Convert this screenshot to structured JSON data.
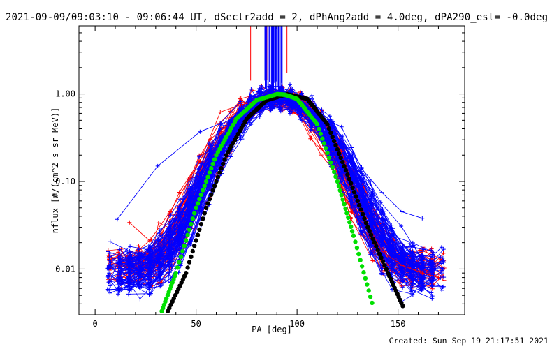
{
  "title": "2021-09-09/09:03:10 - 09:06:44 UT, dSectr2add = 2, dPhAng2add = 4.0deg, dPA290_est= -0.0deg",
  "created": "Created: Sun Sep 19 21:17:51 2021",
  "chart_data": {
    "type": "line",
    "xlabel": "PA [deg]",
    "ylabel": "nflux [#/(cm^2 s sr MeV)]",
    "xlim": [
      -8,
      183
    ],
    "ylim": [
      0.003,
      6.0
    ],
    "yscale": "log",
    "x_ticks": [
      0,
      50,
      100,
      150
    ],
    "x_tick_labels": [
      "0",
      "50",
      "100",
      "150"
    ],
    "y_ticks": [
      0.01,
      0.1,
      1.0
    ],
    "y_tick_labels": [
      "0.01",
      "0.10",
      "1.00"
    ],
    "grid": false,
    "colors": {
      "red_series": "#ff0000",
      "blue_series": "#0000ff",
      "green_fit": "#00e000",
      "black_fit": "#000000"
    },
    "series": [
      {
        "role": "sample-red",
        "x": [
          17,
          27,
          37,
          52,
          62,
          72,
          82,
          92,
          102,
          112,
          122,
          132,
          142,
          152,
          162,
          170
        ],
        "values": [
          0.034,
          0.021,
          0.045,
          0.17,
          0.62,
          0.75,
          0.85,
          0.95,
          0.88,
          0.55,
          0.22,
          0.045,
          0.016,
          0.011,
          0.009,
          0.008
        ]
      },
      {
        "role": "sample-blue",
        "x": [
          11,
          31,
          52,
          62,
          72,
          82,
          92,
          102,
          112,
          122,
          132,
          142,
          152,
          162
        ],
        "values": [
          0.037,
          0.15,
          0.37,
          0.46,
          0.82,
          0.88,
          0.9,
          0.8,
          0.55,
          0.42,
          0.14,
          0.075,
          0.045,
          0.038
        ]
      },
      {
        "role": "fit-green",
        "x": [
          33,
          40,
          50,
          60,
          70,
          80,
          90,
          94,
          100,
          110,
          120,
          128,
          138
        ],
        "values": [
          0.0033,
          0.009,
          0.05,
          0.2,
          0.52,
          0.85,
          0.995,
          0.98,
          0.88,
          0.45,
          0.1,
          0.024,
          0.0035
        ]
      },
      {
        "role": "fit-black",
        "x": [
          36,
          45,
          55,
          65,
          75,
          85,
          95,
          105,
          115,
          125,
          135,
          145,
          153
        ],
        "values": [
          0.0033,
          0.009,
          0.05,
          0.2,
          0.52,
          0.85,
          0.995,
          0.88,
          0.45,
          0.12,
          0.03,
          0.009,
          0.0035
        ]
      }
    ]
  }
}
